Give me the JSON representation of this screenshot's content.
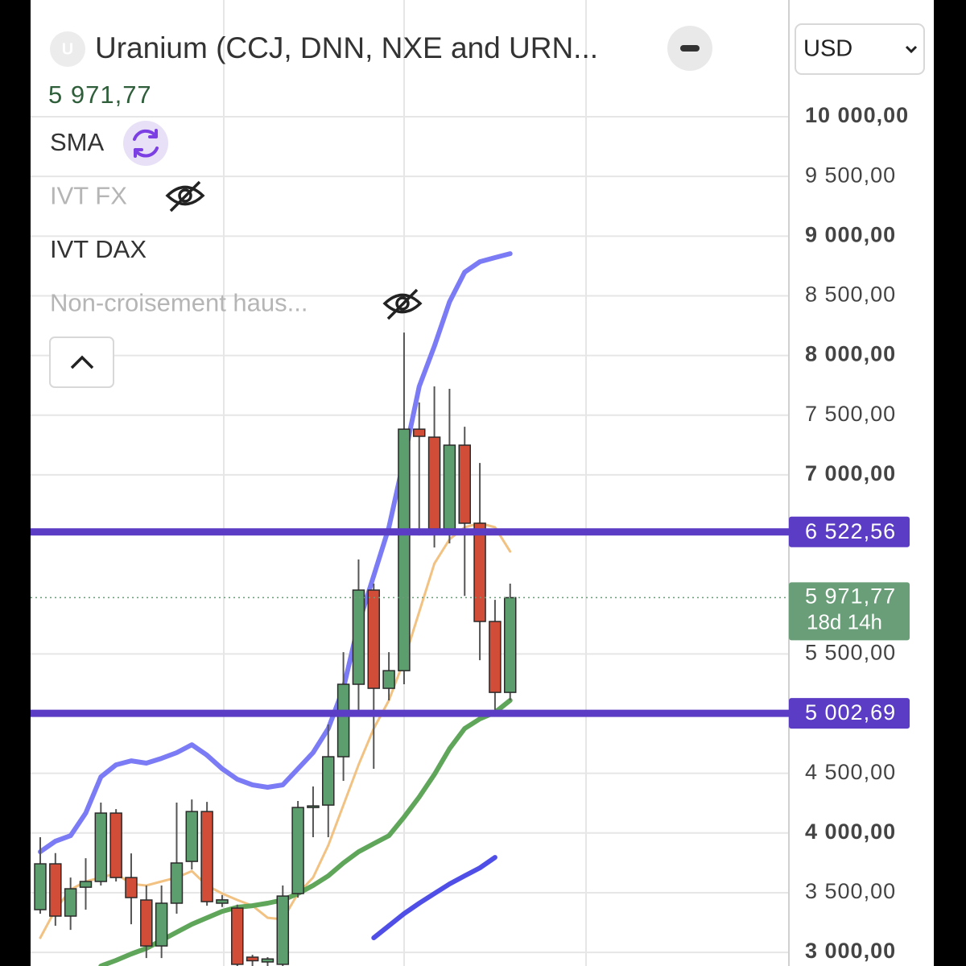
{
  "chart_data": {
    "type": "candlestick",
    "title": "Uranium (CCJ, DNN, NXE and URN...",
    "icon_letter": "U",
    "currency": "USD",
    "last_price": {
      "value": 5971.77,
      "label": "5 971,77"
    },
    "countdown": "18d 14h",
    "indicators": [
      {
        "name": "SMA",
        "muted": false
      },
      {
        "name": "IVT FX",
        "muted": true
      },
      {
        "name": "IVT DAX",
        "muted": false
      },
      {
        "name": "Non-croisement haus...",
        "muted": true
      }
    ],
    "up_color": "#5c9e6e",
    "down_color": "#d24d38",
    "open": [
      3358,
      3742,
      3304,
      3546,
      3594,
      4167,
      3627,
      3439,
      3054,
      3412,
      3762,
      4180,
      3412,
      3371,
      2960,
      2920,
      2900,
      3493,
      4214,
      4234,
      4639,
      5246,
      6035,
      5212,
      5360,
      7383,
      7316,
      6547,
      7249,
      6595,
      5772,
      5178
    ],
    "high": [
      3965,
      3832,
      3627,
      3789,
      4255,
      4200,
      3829,
      3560,
      3560,
      4255,
      4281,
      4261,
      3480,
      3400,
      2980,
      2960,
      3560,
      4268,
      4390,
      4909,
      5515,
      6291,
      6089,
      5515,
      8192,
      7606,
      7741,
      7721,
      7403,
      7100,
      5953,
      6089
    ],
    "low": [
      3324,
      3223,
      3189,
      3358,
      3560,
      3594,
      3236,
      2953,
      2953,
      3324,
      3694,
      3391,
      3380,
      2850,
      2850,
      2850,
      2850,
      3459,
      3965,
      3965,
      4437,
      5010,
      4538,
      5111,
      5246,
      6493,
      6392,
      6426,
      5986,
      5448,
      4976,
      5111
    ],
    "close": [
      3742,
      3304,
      3533,
      3594,
      4167,
      3627,
      3459,
      3054,
      3412,
      3749,
      4180,
      3425,
      3440,
      2900,
      2930,
      2945,
      3472,
      4214,
      4227,
      4639,
      5246,
      6035,
      5212,
      5360,
      7383,
      7323,
      6547,
      7249,
      6595,
      5772,
      5178,
      5971.77
    ],
    "overlays": [
      {
        "color": "#7b7bf5",
        "width": 6,
        "values": [
          3843,
          3931,
          3978,
          4167,
          4470,
          4571,
          4605,
          4585,
          4625,
          4673,
          4740,
          4652,
          4538,
          4450,
          4403,
          4383,
          4403,
          4538,
          4673,
          4875,
          5212,
          5751,
          6156,
          6560,
          7133,
          7741,
          8078,
          8449,
          8698,
          8786,
          8820,
          8853
        ]
      },
      {
        "color": "#f2c283",
        "width": 3,
        "values": [
          3122,
          3358,
          3526,
          3594,
          3627,
          3661,
          3573,
          3560,
          3594,
          3627,
          3681,
          3560,
          3493,
          3439,
          3391,
          3290,
          3277,
          3493,
          3627,
          3897,
          4234,
          4571,
          4875,
          5111,
          5448,
          5853,
          6257,
          6460,
          6561,
          6595,
          6561,
          6358
        ]
      },
      {
        "color": "#5fa55a",
        "width": 6,
        "values": [
          null,
          null,
          null,
          null,
          2886,
          2933,
          2987,
          3034,
          3101,
          3169,
          3236,
          3290,
          3344,
          3378,
          3391,
          3412,
          3439,
          3493,
          3560,
          3641,
          3749,
          3843,
          3911,
          3978,
          4133,
          4302,
          4490,
          4706,
          4875,
          4956,
          5010,
          5111
        ]
      },
      {
        "color": "#4f4fe8",
        "width": 6,
        "values": [
          null,
          null,
          null,
          null,
          null,
          null,
          null,
          null,
          null,
          null,
          null,
          null,
          null,
          null,
          null,
          null,
          null,
          null,
          null,
          null,
          null,
          null,
          3122,
          3223,
          3324,
          3412,
          3493,
          3573,
          3641,
          3708,
          3796,
          null
        ]
      }
    ],
    "levels": [
      {
        "value": 6522.56,
        "label": "6 522,56",
        "color": "#5b3cc4"
      },
      {
        "value": 5002.69,
        "label": "5 002,69",
        "color": "#5b3cc4"
      }
    ],
    "ylim": [
      2886,
      10978
    ],
    "yticks": [
      {
        "value": 10000,
        "label": "10 000,00"
      },
      {
        "value": 9500,
        "label": "9 500,00"
      },
      {
        "value": 9000,
        "label": "9 000,00"
      },
      {
        "value": 8500,
        "label": "8 500,00"
      },
      {
        "value": 8000,
        "label": "8 000,00"
      },
      {
        "value": 7500,
        "label": "7 500,00"
      },
      {
        "value": 7000,
        "label": "7 000,00"
      },
      {
        "value": 5500,
        "label": "5 500,00"
      },
      {
        "value": 4500,
        "label": "4 500,00"
      },
      {
        "value": 4000,
        "label": "4 000,00"
      },
      {
        "value": 3500,
        "label": "3 500,00"
      },
      {
        "value": 3000,
        "label": "3 000,00"
      }
    ],
    "grid": true
  }
}
